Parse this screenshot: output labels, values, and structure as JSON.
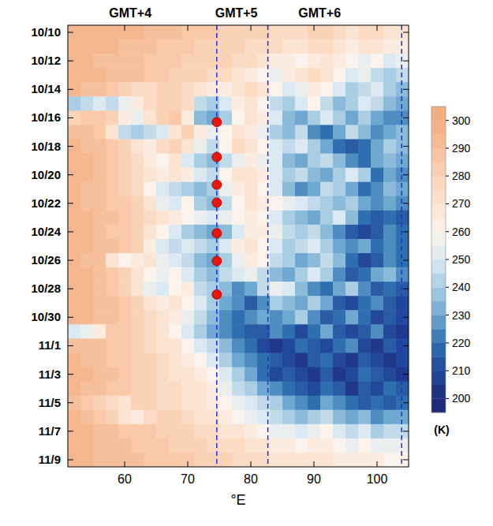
{
  "chart_data": {
    "type": "heatmap",
    "xlabel": "°E",
    "xlim": [
      51,
      105
    ],
    "xticks": [
      60,
      70,
      80,
      90,
      100
    ],
    "ylim": [
      -0.5,
      30.5
    ],
    "yticks": [
      {
        "value": 0,
        "label": "10/10"
      },
      {
        "value": 2,
        "label": "10/12"
      },
      {
        "value": 4,
        "label": "10/14"
      },
      {
        "value": 6,
        "label": "10/16"
      },
      {
        "value": 8,
        "label": "10/18"
      },
      {
        "value": 10,
        "label": "10/20"
      },
      {
        "value": 12,
        "label": "10/22"
      },
      {
        "value": 14,
        "label": "10/24"
      },
      {
        "value": 16,
        "label": "10/26"
      },
      {
        "value": 18,
        "label": "10/28"
      },
      {
        "value": 20,
        "label": "10/30"
      },
      {
        "value": 22,
        "label": "11/1"
      },
      {
        "value": 24,
        "label": "11/3"
      },
      {
        "value": 26,
        "label": "11/5"
      },
      {
        "value": 28,
        "label": "11/7"
      },
      {
        "value": 30,
        "label": "11/9"
      }
    ],
    "grid": false,
    "x": [
      52,
      54,
      56,
      58,
      60,
      62,
      64,
      66,
      68,
      70,
      72,
      74,
      76,
      78,
      80,
      82,
      84,
      86,
      88,
      90,
      92,
      94,
      96,
      98,
      100,
      102,
      104
    ],
    "y": [
      0,
      1,
      2,
      3,
      4,
      5,
      6,
      7,
      8,
      9,
      10,
      11,
      12,
      13,
      14,
      15,
      16,
      17,
      18,
      19,
      20,
      21,
      22,
      23,
      24,
      25,
      26,
      27,
      28,
      29,
      30
    ],
    "values": [
      [
        295,
        295,
        295,
        295,
        295,
        295,
        290,
        290,
        290,
        285,
        285,
        285,
        280,
        280,
        280,
        280,
        275,
        275,
        275,
        280,
        280,
        275,
        270,
        275,
        275,
        270,
        270
      ],
      [
        295,
        295,
        295,
        295,
        290,
        290,
        290,
        285,
        285,
        285,
        280,
        280,
        280,
        280,
        275,
        275,
        275,
        270,
        270,
        275,
        275,
        270,
        265,
        270,
        270,
        265,
        265
      ],
      [
        295,
        295,
        290,
        290,
        290,
        290,
        285,
        285,
        285,
        280,
        280,
        280,
        280,
        275,
        275,
        270,
        265,
        265,
        260,
        265,
        270,
        265,
        260,
        255,
        260,
        250,
        255
      ],
      [
        295,
        295,
        295,
        290,
        290,
        290,
        285,
        285,
        280,
        280,
        280,
        275,
        275,
        270,
        265,
        260,
        255,
        265,
        270,
        275,
        270,
        260,
        250,
        255,
        245,
        240,
        245
      ],
      [
        295,
        290,
        290,
        285,
        280,
        275,
        275,
        280,
        280,
        275,
        270,
        265,
        265,
        270,
        275,
        270,
        260,
        250,
        255,
        265,
        260,
        250,
        240,
        245,
        250,
        240,
        235
      ],
      [
        240,
        245,
        250,
        245,
        255,
        265,
        275,
        280,
        280,
        275,
        245,
        240,
        250,
        265,
        270,
        260,
        245,
        240,
        250,
        260,
        245,
        235,
        240,
        250,
        245,
        235,
        230
      ],
      [
        280,
        285,
        285,
        280,
        265,
        255,
        270,
        280,
        285,
        265,
        235,
        230,
        240,
        260,
        270,
        265,
        250,
        235,
        230,
        240,
        250,
        240,
        230,
        240,
        230,
        225,
        225
      ],
      [
        290,
        290,
        285,
        270,
        245,
        240,
        245,
        250,
        270,
        280,
        265,
        255,
        260,
        270,
        265,
        255,
        240,
        235,
        245,
        225,
        220,
        230,
        245,
        235,
        225,
        230,
        235
      ],
      [
        295,
        290,
        290,
        285,
        280,
        270,
        265,
        275,
        280,
        270,
        255,
        245,
        260,
        275,
        270,
        260,
        250,
        245,
        250,
        240,
        230,
        220,
        215,
        220,
        230,
        240,
        235
      ],
      [
        295,
        295,
        290,
        285,
        280,
        275,
        265,
        260,
        270,
        250,
        240,
        235,
        245,
        255,
        265,
        255,
        250,
        235,
        230,
        240,
        245,
        235,
        225,
        220,
        230,
        235,
        230
      ],
      [
        295,
        295,
        290,
        285,
        280,
        275,
        270,
        265,
        270,
        265,
        250,
        245,
        260,
        270,
        270,
        265,
        250,
        240,
        245,
        235,
        230,
        240,
        250,
        240,
        220,
        230,
        225
      ],
      [
        295,
        290,
        290,
        285,
        280,
        275,
        260,
        250,
        245,
        240,
        235,
        240,
        255,
        265,
        270,
        260,
        250,
        235,
        225,
        230,
        245,
        240,
        230,
        220,
        225,
        235,
        230
      ],
      [
        295,
        290,
        290,
        285,
        285,
        280,
        270,
        255,
        250,
        260,
        240,
        235,
        245,
        260,
        270,
        265,
        260,
        255,
        250,
        245,
        240,
        235,
        240,
        230,
        225,
        230,
        225
      ],
      [
        295,
        295,
        290,
        290,
        285,
        280,
        275,
        270,
        265,
        260,
        255,
        250,
        255,
        260,
        265,
        260,
        250,
        240,
        235,
        230,
        240,
        250,
        235,
        220,
        215,
        220,
        215
      ],
      [
        295,
        295,
        290,
        285,
        285,
        280,
        270,
        260,
        250,
        240,
        235,
        230,
        235,
        250,
        265,
        265,
        255,
        245,
        240,
        245,
        235,
        225,
        215,
        210,
        215,
        225,
        220
      ],
      [
        295,
        295,
        290,
        290,
        285,
        280,
        265,
        250,
        245,
        250,
        245,
        240,
        250,
        265,
        270,
        260,
        250,
        240,
        245,
        250,
        240,
        230,
        225,
        230,
        220,
        225,
        220
      ],
      [
        295,
        290,
        290,
        270,
        260,
        265,
        270,
        255,
        250,
        245,
        235,
        230,
        240,
        255,
        265,
        260,
        245,
        240,
        230,
        235,
        245,
        235,
        220,
        210,
        215,
        225,
        220
      ],
      [
        295,
        295,
        290,
        285,
        280,
        270,
        260,
        255,
        260,
        250,
        240,
        235,
        245,
        250,
        255,
        245,
        235,
        230,
        240,
        250,
        240,
        225,
        215,
        220,
        230,
        235,
        225
      ],
      [
        295,
        295,
        290,
        285,
        280,
        270,
        255,
        250,
        260,
        265,
        245,
        240,
        235,
        225,
        230,
        245,
        255,
        250,
        235,
        225,
        220,
        230,
        240,
        225,
        215,
        220,
        215
      ],
      [
        295,
        295,
        290,
        290,
        285,
        280,
        270,
        265,
        270,
        260,
        250,
        240,
        230,
        225,
        215,
        225,
        240,
        235,
        230,
        240,
        230,
        215,
        210,
        220,
        225,
        215,
        210
      ],
      [
        295,
        295,
        290,
        290,
        285,
        280,
        275,
        270,
        265,
        255,
        245,
        235,
        225,
        220,
        225,
        230,
        225,
        230,
        240,
        225,
        215,
        220,
        230,
        220,
        210,
        215,
        210
      ],
      [
        250,
        255,
        265,
        285,
        285,
        280,
        275,
        270,
        260,
        250,
        240,
        230,
        225,
        220,
        215,
        215,
        225,
        220,
        210,
        220,
        230,
        215,
        210,
        215,
        225,
        210,
        205
      ],
      [
        290,
        290,
        290,
        285,
        285,
        280,
        275,
        270,
        270,
        260,
        250,
        245,
        235,
        225,
        220,
        210,
        205,
        210,
        220,
        215,
        210,
        220,
        225,
        210,
        205,
        215,
        210
      ],
      [
        295,
        290,
        290,
        285,
        285,
        280,
        280,
        275,
        270,
        265,
        260,
        250,
        240,
        230,
        225,
        220,
        215,
        210,
        205,
        215,
        220,
        210,
        205,
        215,
        210,
        205,
        210
      ],
      [
        295,
        295,
        290,
        290,
        285,
        280,
        280,
        275,
        270,
        270,
        265,
        260,
        250,
        240,
        230,
        220,
        210,
        215,
        210,
        205,
        215,
        205,
        210,
        220,
        215,
        210,
        205
      ],
      [
        295,
        290,
        290,
        285,
        285,
        280,
        280,
        275,
        275,
        270,
        270,
        265,
        255,
        245,
        240,
        230,
        225,
        220,
        215,
        210,
        220,
        215,
        205,
        215,
        210,
        220,
        215
      ],
      [
        290,
        285,
        280,
        275,
        270,
        280,
        280,
        275,
        275,
        270,
        270,
        265,
        260,
        255,
        250,
        245,
        240,
        230,
        225,
        220,
        230,
        225,
        220,
        215,
        220,
        215,
        220
      ],
      [
        295,
        290,
        285,
        280,
        270,
        265,
        275,
        280,
        280,
        275,
        270,
        270,
        265,
        260,
        255,
        250,
        245,
        240,
        235,
        240,
        245,
        235,
        230,
        235,
        225,
        230,
        230
      ],
      [
        295,
        295,
        290,
        290,
        285,
        285,
        285,
        280,
        280,
        280,
        275,
        275,
        270,
        270,
        265,
        260,
        255,
        255,
        250,
        255,
        260,
        250,
        245,
        250,
        240,
        245,
        245
      ],
      [
        295,
        295,
        290,
        290,
        290,
        285,
        285,
        285,
        280,
        280,
        280,
        275,
        275,
        275,
        270,
        270,
        265,
        265,
        260,
        265,
        265,
        260,
        255,
        260,
        255,
        255,
        255
      ],
      [
        295,
        295,
        290,
        290,
        290,
        290,
        285,
        285,
        285,
        285,
        280,
        280,
        280,
        275,
        275,
        275,
        270,
        270,
        270,
        270,
        270,
        265,
        265,
        265,
        265,
        260,
        260
      ]
    ],
    "colorbar": {
      "range": [
        195,
        305
      ],
      "ticks": [
        200,
        210,
        220,
        230,
        240,
        250,
        260,
        270,
        280,
        290,
        300
      ],
      "label": "(K)"
    },
    "reference_lines": {
      "x": [
        74.6,
        82.7,
        103.9
      ],
      "color": "#1f2fe0",
      "line_style": "dashed"
    },
    "points": {
      "x": [
        74.6,
        74.6,
        74.6,
        74.6,
        74.6,
        74.6,
        74.6
      ],
      "y": [
        6.3,
        8.75,
        10.7,
        11.95,
        14.1,
        16.05,
        18.4
      ],
      "color": "#e8160c",
      "marker": "circle"
    },
    "top_labels": [
      {
        "x": 60.9,
        "text": "GMT+4"
      },
      {
        "x": 77.7,
        "text": "GMT+5"
      },
      {
        "x": 90.9,
        "text": "GMT+6"
      }
    ]
  }
}
